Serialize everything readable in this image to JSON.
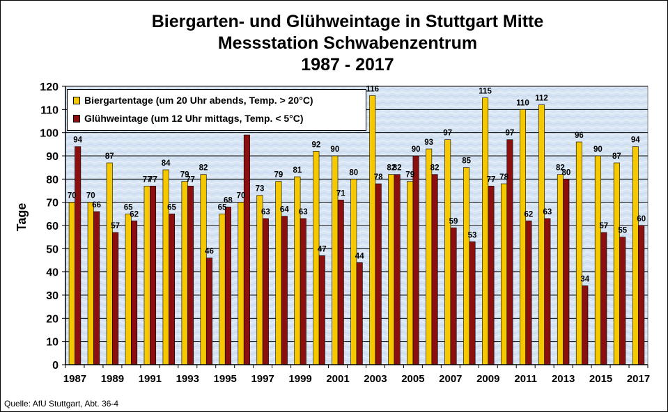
{
  "title": {
    "line1": "Biergarten- und Glühweintage in Stuttgart Mitte",
    "line2": "Messstation Schwabenzentrum",
    "line3": "1987 - 2017"
  },
  "source": "Quelle: AfU Stuttgart, Abt. 36-4",
  "colors": {
    "biergarten": "#f5c800",
    "gluehwein": "#8b0f0f",
    "plot_background": "#d4e3f3"
  },
  "chart_data": {
    "type": "bar",
    "title": "Biergarten- und Glühweintage in Stuttgart Mitte\nMessstation Schwabenzentrum\n1987 - 2017",
    "ylabel": "Tage",
    "xlabel": "",
    "ylim": [
      0,
      120
    ],
    "yticks": [
      0,
      10,
      20,
      30,
      40,
      50,
      60,
      70,
      80,
      90,
      100,
      110,
      120
    ],
    "grid": "horizontal",
    "legend_position": "top-left",
    "categories": [
      1987,
      1988,
      1989,
      1990,
      1991,
      1992,
      1993,
      1994,
      1995,
      1996,
      1997,
      1998,
      1999,
      2000,
      2001,
      2002,
      2003,
      2004,
      2005,
      2006,
      2007,
      2008,
      2009,
      2010,
      2011,
      2012,
      2013,
      2014,
      2015,
      2016,
      2017
    ],
    "x_tick_labels": [
      "1987",
      "1989",
      "1991",
      "1993",
      "1995",
      "1997",
      "1999",
      "2001",
      "2003",
      "2005",
      "2007",
      "2009",
      "2011",
      "2013",
      "2015",
      "2017"
    ],
    "series": [
      {
        "name": "Biergartentage (um 20 Uhr abends, Temp. > 20°C)",
        "values": [
          70,
          70,
          87,
          65,
          77,
          84,
          79,
          82,
          65,
          70,
          73,
          79,
          81,
          92,
          90,
          80,
          116,
          82,
          79,
          93,
          97,
          85,
          115,
          78,
          110,
          112,
          82,
          96,
          90,
          87,
          94
        ]
      },
      {
        "name": "Glühweintage (um 12 Uhr mittags, Temp. < 5°C)",
        "values": [
          94,
          66,
          57,
          62,
          77,
          65,
          77,
          46,
          68,
          99,
          63,
          64,
          63,
          47,
          71,
          44,
          78,
          82,
          90,
          82,
          59,
          53,
          77,
          97,
          62,
          63,
          80,
          34,
          57,
          55,
          60
        ]
      }
    ]
  }
}
